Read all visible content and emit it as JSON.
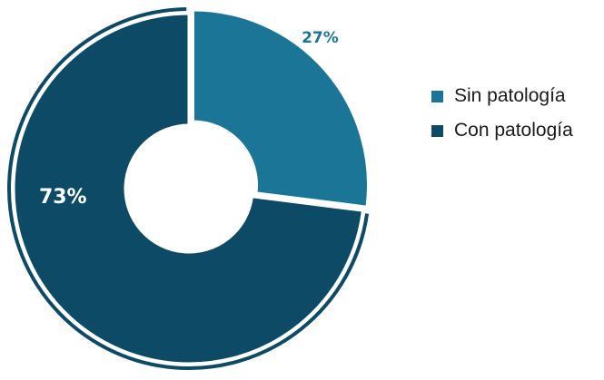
{
  "chart_data": {
    "type": "pie",
    "variant": "donut",
    "categories": [
      "Sin patología",
      "Con patología"
    ],
    "values": [
      27,
      73
    ],
    "data_labels": [
      "27%",
      "73%"
    ],
    "colors": [
      "#1a7596",
      "#0d4a66"
    ],
    "exploded": "Sin patología",
    "legend_position": "right",
    "title": ""
  },
  "legend": {
    "items": [
      {
        "label": "Sin patología",
        "color": "#1a7596"
      },
      {
        "label": "Con patología",
        "color": "#0d4a66"
      }
    ]
  }
}
